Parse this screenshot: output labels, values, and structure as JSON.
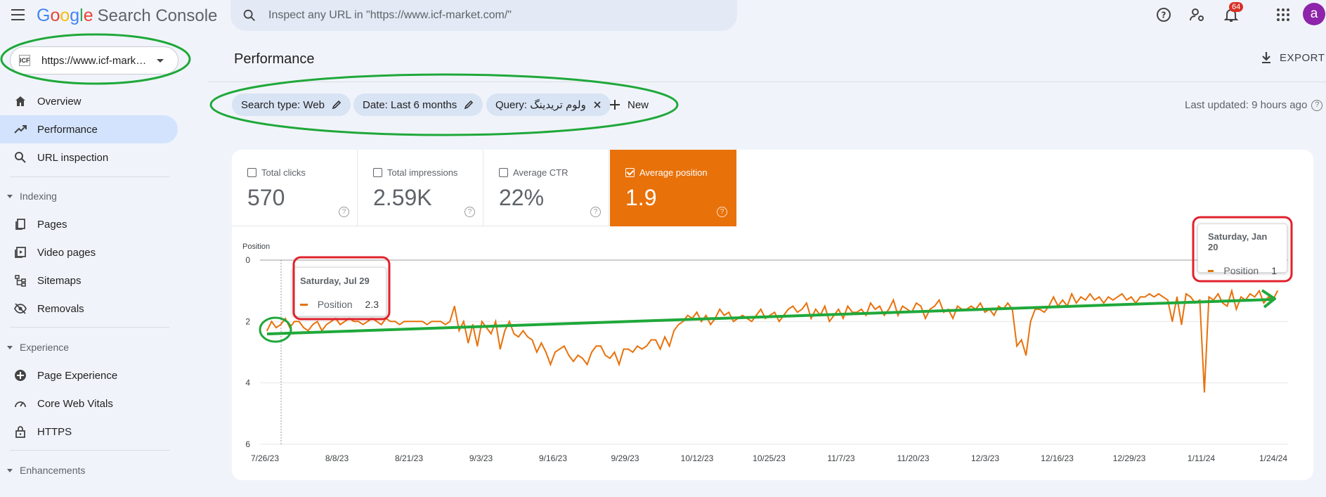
{
  "header": {
    "logo_google": [
      "G",
      "o",
      "o",
      "g",
      "l",
      "e"
    ],
    "logo_colors": [
      "#4285f4",
      "#ea4335",
      "#fbbc05",
      "#4285f4",
      "#34a853",
      "#ea4335"
    ],
    "product_name": "Search Console",
    "search_placeholder": "Inspect any URL in \"https://www.icf-market.com/\"",
    "notification_count": "64",
    "avatar_letter": "a"
  },
  "property": {
    "favicon_text": "ICF",
    "url": "https://www.icf-market.com/"
  },
  "sidebar": {
    "items_top": [
      {
        "label": "Overview",
        "icon": "home-icon"
      },
      {
        "label": "Performance",
        "icon": "trending-up-icon"
      },
      {
        "label": "URL inspection",
        "icon": "search-icon"
      }
    ],
    "section_indexing": "Indexing",
    "items_indexing": [
      {
        "label": "Pages",
        "icon": "pages-icon"
      },
      {
        "label": "Video pages",
        "icon": "video-pages-icon"
      },
      {
        "label": "Sitemaps",
        "icon": "sitemaps-icon"
      },
      {
        "label": "Removals",
        "icon": "removals-icon"
      }
    ],
    "section_experience": "Experience",
    "items_experience": [
      {
        "label": "Page Experience",
        "icon": "page-experience-icon"
      },
      {
        "label": "Core Web Vitals",
        "icon": "gauge-icon"
      },
      {
        "label": "HTTPS",
        "icon": "lock-icon"
      }
    ],
    "section_enhancements": "Enhancements"
  },
  "main": {
    "page_title": "Performance",
    "export_label": "EXPORT",
    "filters": [
      {
        "label": "Search type: Web",
        "icon": "edit-icon"
      },
      {
        "label": "Date: Last 6 months",
        "icon": "edit-icon"
      },
      {
        "label": "Query: ولوم تریدینگ",
        "icon": "close-icon"
      }
    ],
    "new_label": "New",
    "last_updated": "Last updated: 9 hours ago"
  },
  "metrics": [
    {
      "label": "Total clicks",
      "value": "570",
      "selected": false
    },
    {
      "label": "Total impressions",
      "value": "2.59K",
      "selected": false
    },
    {
      "label": "Average CTR",
      "value": "22%",
      "selected": false
    },
    {
      "label": "Average position",
      "value": "1.9",
      "selected": true
    }
  ],
  "chart_data": {
    "type": "line",
    "ylabel": "Position",
    "y_ticks": [
      "0",
      "2",
      "4",
      "6"
    ],
    "ylim": [
      0,
      6
    ],
    "y_reversed": true,
    "x_ticks": [
      "7/26/23",
      "8/8/23",
      "8/21/23",
      "9/3/23",
      "9/16/23",
      "9/29/23",
      "10/12/23",
      "10/25/23",
      "11/7/23",
      "11/20/23",
      "12/3/23",
      "12/16/23",
      "12/29/23",
      "1/11/24",
      "1/24/24"
    ],
    "x_range": [
      "2023-07-26",
      "2024-01-24"
    ],
    "color": "#e8710a",
    "grid": true,
    "series": [
      {
        "values": [
          2.3,
          2.0,
          2.2,
          2.1,
          1.9,
          2.2,
          2.0,
          2.0,
          2.2,
          2.3,
          2.1,
          2.0,
          2.3,
          2.1,
          2.0,
          1.9,
          2.1,
          2.0,
          1.9,
          2.0,
          2.0,
          2.1,
          2.0,
          1.9,
          2.0,
          2.1,
          1.9,
          2.0,
          2.0,
          2.1,
          2.0,
          2.0,
          2.0,
          2.0,
          2.0,
          2.1,
          2.0,
          2.0,
          2.0,
          2.1,
          2.0,
          1.5,
          2.3,
          2.0,
          2.7,
          2.1,
          2.8,
          2.0,
          2.2,
          2.4,
          2.0,
          2.9,
          2.3,
          2.0,
          2.4,
          2.5,
          2.3,
          2.5,
          2.6,
          3.0,
          2.7,
          3.0,
          3.4,
          3.0,
          2.9,
          2.8,
          3.1,
          3.3,
          3.1,
          3.2,
          3.4,
          3.0,
          2.8,
          2.8,
          3.1,
          3.2,
          3.0,
          3.4,
          2.9,
          2.9,
          3.0,
          2.8,
          2.9,
          2.8,
          2.6,
          2.6,
          2.9,
          2.5,
          2.8,
          2.3,
          2.1,
          2.0,
          1.8,
          1.9,
          1.7,
          2.0,
          1.8,
          2.1,
          1.9,
          1.6,
          1.8,
          1.7,
          2.0,
          1.9,
          1.8,
          1.9,
          2.0,
          1.8,
          1.6,
          1.9,
          1.8,
          1.7,
          2.0,
          1.8,
          1.6,
          1.5,
          1.7,
          1.6,
          1.4,
          1.9,
          1.6,
          1.8,
          1.5,
          2.0,
          1.8,
          1.6,
          1.9,
          1.5,
          1.7,
          1.7,
          1.6,
          1.8,
          1.4,
          1.6,
          1.5,
          1.8,
          1.6,
          1.3,
          1.8,
          1.5,
          1.6,
          1.7,
          1.4,
          1.5,
          1.9,
          1.6,
          1.5,
          1.3,
          1.7,
          1.6,
          1.9,
          1.5,
          1.6,
          1.6,
          1.5,
          1.6,
          1.4,
          1.7,
          1.6,
          1.8,
          1.5,
          1.6,
          1.4,
          1.6,
          2.8,
          2.6,
          3.1,
          2.0,
          1.6,
          1.6,
          1.7,
          1.5,
          1.2,
          1.5,
          1.3,
          1.5,
          1.1,
          1.4,
          1.2,
          1.3,
          1.1,
          1.3,
          1.2,
          1.4,
          1.2,
          1.3,
          1.2,
          1.1,
          1.3,
          1.2,
          1.4,
          1.2,
          1.2,
          1.1,
          1.2,
          1.1,
          1.2,
          1.3,
          2.0,
          1.2,
          2.1,
          1.1,
          1.2,
          1.4,
          1.3,
          4.3,
          1.2,
          1.3,
          1.1,
          1.4,
          1.5,
          1.0,
          1.6,
          1.2,
          1.3,
          1.1,
          1.2,
          1.0,
          1.4,
          1.2,
          1.3,
          1.0
        ]
      }
    ],
    "tooltips": [
      {
        "date": "Saturday, Jul 29",
        "series": "Position",
        "value": "2.3"
      },
      {
        "date": "Saturday, Jan 20",
        "series": "Position",
        "value": "1"
      }
    ]
  },
  "annotations": {
    "green": "#1fa83a",
    "red": "#e0212b"
  }
}
